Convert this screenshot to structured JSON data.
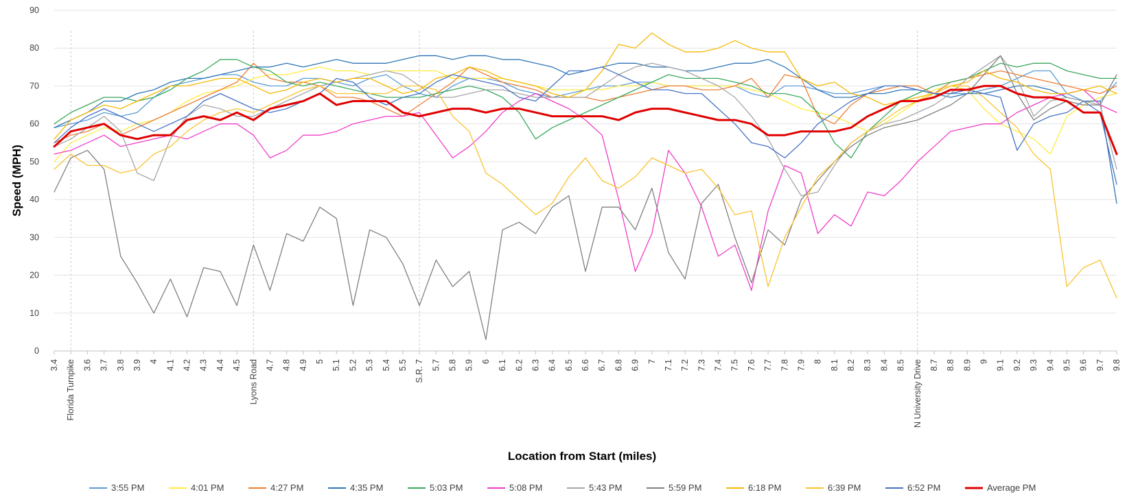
{
  "chart_data": {
    "type": "line",
    "title": "",
    "xlabel": "Location from Start (miles)",
    "ylabel": "Speed (MPH)",
    "ylim": [
      0,
      90
    ],
    "y_ticks": [
      0,
      10,
      20,
      30,
      40,
      50,
      60,
      70,
      80,
      90
    ],
    "grid": true,
    "legend_position": "bottom",
    "categories": [
      "3.4",
      "Florida Turnpike",
      "3.6",
      "3.7",
      "3.8",
      "3.9",
      "4",
      "4.1",
      "4.2",
      "4.3",
      "4.4",
      "4.5",
      "Lyons Road",
      "4.7",
      "4.8",
      "4.9",
      "5",
      "5.1",
      "5.2",
      "5.3",
      "5.4",
      "5.5",
      "S.R. 7",
      "5.7",
      "5.8",
      "5.9",
      "6",
      "6.1",
      "6.2",
      "6.3",
      "6.4",
      "6.5",
      "6.6",
      "6.7",
      "6.8",
      "6.9",
      "7",
      "7.1",
      "7.2",
      "7.3",
      "7.4",
      "7.5",
      "7.6",
      "7.7",
      "7.8",
      "7.9",
      "8",
      "8.1",
      "8.2",
      "8.3",
      "8.4",
      "8.5",
      "N University Drive",
      "8.7",
      "8.8",
      "8.9",
      "9",
      "9.1",
      "9.2",
      "9.3",
      "9.4",
      "9.5",
      "9.6",
      "9.7",
      "9.8"
    ],
    "landmarks": [
      "Florida Turnpike",
      "Lyons Road",
      "S.R. 7",
      "N University Drive"
    ],
    "series": [
      {
        "name": "3:55 PM",
        "color": "#5B9BD5",
        "width": 1.3,
        "values": [
          59,
          60,
          61,
          63,
          62,
          63,
          67,
          70,
          71,
          72,
          73,
          73,
          71,
          70,
          70,
          72,
          72,
          71,
          70,
          72,
          73,
          70,
          68,
          67,
          70,
          72,
          72,
          71,
          69,
          68,
          67,
          68,
          69,
          70,
          70,
          71,
          71,
          70,
          70,
          70,
          70,
          70,
          68,
          67,
          70,
          70,
          69,
          68,
          68,
          69,
          70,
          70,
          69,
          68,
          68,
          68,
          69,
          70,
          72,
          74,
          74,
          68,
          66,
          66,
          71
        ]
      },
      {
        "name": "4:01 PM",
        "color": "#FFEB3B",
        "width": 1.3,
        "values": [
          50,
          55,
          57,
          59,
          58,
          60,
          61,
          63,
          66,
          68,
          69,
          70,
          72,
          73,
          73,
          74,
          75,
          74,
          74,
          73,
          74,
          74,
          74,
          74,
          72,
          72,
          72,
          72,
          71,
          70,
          69,
          69,
          69,
          69,
          70,
          70,
          71,
          70,
          70,
          70,
          70,
          70,
          69,
          68,
          66,
          64,
          63,
          62,
          60,
          58,
          60,
          63,
          66,
          69,
          70,
          69,
          64,
          60,
          58,
          56,
          52,
          62,
          65,
          67,
          68
        ]
      },
      {
        "name": "4:27 PM",
        "color": "#ED7D31",
        "width": 1.3,
        "values": [
          55,
          57,
          58,
          60,
          57,
          59,
          61,
          63,
          65,
          67,
          69,
          71,
          76,
          72,
          71,
          71,
          70,
          67,
          67,
          66,
          64,
          62,
          65,
          68,
          71,
          75,
          73,
          71,
          70,
          69,
          67,
          67,
          67,
          66,
          67,
          68,
          69,
          70,
          70,
          69,
          69,
          70,
          72,
          67,
          73,
          72,
          62,
          60,
          65,
          68,
          69,
          70,
          70,
          68,
          71,
          72,
          73,
          74,
          73,
          72,
          71,
          70,
          69,
          68,
          70
        ]
      },
      {
        "name": "4:35 PM",
        "color": "#2E75B6",
        "width": 1.3,
        "values": [
          59,
          61,
          63,
          66,
          66,
          68,
          69,
          71,
          72,
          72,
          73,
          74,
          75,
          75,
          76,
          75,
          76,
          77,
          76,
          76,
          76,
          77,
          78,
          78,
          77,
          78,
          78,
          77,
          77,
          76,
          75,
          73,
          74,
          75,
          76,
          76,
          75,
          75,
          74,
          74,
          75,
          76,
          76,
          77,
          75,
          72,
          69,
          67,
          67,
          68,
          68,
          69,
          69,
          68,
          67,
          68,
          68,
          69,
          70,
          70,
          69,
          67,
          66,
          66,
          39
        ]
      },
      {
        "name": "5:03 PM",
        "color": "#38A85C",
        "width": 1.3,
        "values": [
          60,
          63,
          65,
          67,
          67,
          66,
          67,
          69,
          72,
          74,
          77,
          77,
          75,
          74,
          71,
          70,
          71,
          70,
          69,
          68,
          67,
          67,
          67,
          68,
          69,
          70,
          69,
          67,
          63,
          56,
          59,
          61,
          63,
          65,
          67,
          69,
          71,
          73,
          72,
          72,
          72,
          71,
          70,
          68,
          68,
          67,
          63,
          55,
          51,
          58,
          62,
          66,
          68,
          70,
          71,
          72,
          74,
          76,
          75,
          76,
          76,
          74,
          73,
          72,
          72
        ]
      },
      {
        "name": "5:08 PM",
        "color": "#F03BC8",
        "width": 1.3,
        "values": [
          52,
          53,
          55,
          57,
          54,
          55,
          56,
          57,
          56,
          58,
          60,
          60,
          57,
          51,
          53,
          57,
          57,
          58,
          60,
          61,
          62,
          62,
          63,
          57,
          51,
          54,
          58,
          63,
          66,
          68,
          66,
          64,
          61,
          57,
          40,
          21,
          31,
          53,
          47,
          38,
          25,
          28,
          16,
          37,
          49,
          47,
          31,
          36,
          33,
          42,
          41,
          45,
          50,
          54,
          58,
          59,
          60,
          60,
          63,
          65,
          67,
          68,
          69,
          65,
          63
        ]
      },
      {
        "name": "5:43 PM",
        "color": "#A5A5A5",
        "width": 1.3,
        "values": [
          54,
          56,
          59,
          62,
          58,
          47,
          45,
          56,
          62,
          65,
          64,
          62,
          62,
          64,
          66,
          68,
          70,
          71,
          72,
          73,
          74,
          73,
          70,
          67,
          67,
          68,
          69,
          69,
          68,
          67,
          67,
          67,
          67,
          70,
          73,
          75,
          76,
          75,
          74,
          72,
          70,
          67,
          62,
          56,
          48,
          41,
          42,
          49,
          55,
          58,
          60,
          61,
          63,
          65,
          68,
          72,
          75,
          78,
          72,
          62,
          66,
          67,
          66,
          65,
          48
        ]
      },
      {
        "name": "5:59 PM",
        "color": "#7F7F7F",
        "width": 1.3,
        "values": [
          42,
          51,
          53,
          48,
          25,
          18,
          10,
          19,
          9,
          22,
          21,
          12,
          28,
          16,
          31,
          29,
          38,
          35,
          12,
          32,
          30,
          23,
          12,
          24,
          17,
          21,
          3,
          32,
          34,
          31,
          38,
          41,
          21,
          38,
          38,
          32,
          43,
          26,
          19,
          39,
          44,
          30,
          18,
          32,
          28,
          40,
          45,
          50,
          54,
          57,
          59,
          60,
          61,
          63,
          65,
          68,
          73,
          78,
          68,
          61,
          64,
          66,
          65,
          65,
          73
        ]
      },
      {
        "name": "6:18 PM",
        "color": "#F5B800",
        "width": 1.3,
        "values": [
          56,
          61,
          63,
          65,
          64,
          66,
          68,
          70,
          70,
          71,
          72,
          72,
          70,
          68,
          69,
          71,
          72,
          71,
          72,
          72,
          70,
          68,
          69,
          72,
          73,
          75,
          74,
          72,
          71,
          70,
          68,
          67,
          69,
          74,
          81,
          80,
          84,
          81,
          79,
          79,
          80,
          82,
          80,
          79,
          79,
          72,
          70,
          71,
          68,
          67,
          65,
          66,
          67,
          68,
          70,
          71,
          74,
          72,
          71,
          69,
          68,
          68,
          69,
          70,
          68
        ]
      },
      {
        "name": "6:39 PM",
        "color": "#F9C22E",
        "width": 1.3,
        "values": [
          48,
          52,
          49,
          49,
          47,
          48,
          52,
          54,
          58,
          61,
          63,
          64,
          63,
          65,
          67,
          69,
          70,
          68,
          68,
          68,
          68,
          70,
          70,
          69,
          62,
          58,
          47,
          44,
          40,
          36,
          39,
          46,
          51,
          45,
          43,
          46,
          51,
          49,
          47,
          48,
          43,
          36,
          37,
          17,
          30,
          38,
          46,
          50,
          55,
          58,
          61,
          64,
          66,
          68,
          70,
          70,
          67,
          63,
          59,
          52,
          48,
          17,
          22,
          24,
          14
        ]
      },
      {
        "name": "6:52 PM",
        "color": "#4472C4",
        "width": 1.3,
        "values": [
          55,
          59,
          62,
          64,
          62,
          60,
          58,
          60,
          62,
          66,
          68,
          66,
          64,
          63,
          64,
          66,
          68,
          72,
          71,
          67,
          65,
          67,
          68,
          71,
          73,
          72,
          71,
          70,
          67,
          66,
          70,
          74,
          74,
          75,
          73,
          71,
          69,
          69,
          68,
          68,
          64,
          60,
          55,
          54,
          51,
          55,
          60,
          63,
          66,
          68,
          70,
          70,
          69,
          68,
          68,
          69,
          68,
          67,
          53,
          60,
          62,
          63,
          66,
          63,
          44
        ]
      },
      {
        "name": "Average PM",
        "color": "#E00000",
        "width": 3.0,
        "values": [
          54,
          58,
          59,
          60,
          57,
          56,
          57,
          57,
          61,
          62,
          61,
          63,
          61,
          64,
          65,
          66,
          68,
          65,
          66,
          66,
          66,
          63,
          62,
          63,
          64,
          64,
          63,
          64,
          64,
          63,
          62,
          62,
          62,
          62,
          61,
          63,
          64,
          64,
          63,
          62,
          61,
          61,
          60,
          57,
          57,
          58,
          58,
          58,
          59,
          62,
          64,
          66,
          66,
          67,
          69,
          69,
          70,
          70,
          68,
          67,
          67,
          66,
          63,
          63,
          52
        ]
      }
    ]
  }
}
